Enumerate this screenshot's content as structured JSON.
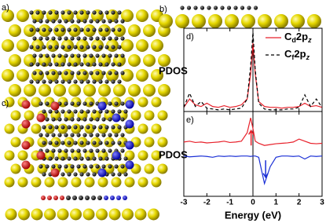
{
  "panel_labels": [
    "a)",
    "b)",
    "c)"
  ],
  "chart_data": [
    {
      "type": "line",
      "label": "d)",
      "ylabel": "PDOS",
      "xlim": [
        -3,
        3
      ],
      "ylim": [
        0,
        1
      ],
      "xticks": [
        -3,
        -2,
        -1,
        0,
        1,
        2,
        3
      ],
      "x": [
        -3,
        -2.75,
        -2.5,
        -2.25,
        -2,
        -1.75,
        -1.5,
        -1.25,
        -1,
        -0.75,
        -0.5,
        -0.25,
        -0.1,
        0,
        0.1,
        0.25,
        0.5,
        0.75,
        1,
        1.25,
        1.5,
        1.75,
        2,
        2.25,
        2.5,
        2.75,
        3
      ],
      "series": [
        {
          "name": "Cd2pz",
          "color": "#e8202a",
          "dash": false,
          "values": [
            0.05,
            0.15,
            0.08,
            0.06,
            0.1,
            0.06,
            0.05,
            0.07,
            0.05,
            0.06,
            0.08,
            0.15,
            0.45,
            0.82,
            0.45,
            0.12,
            0.06,
            0.05,
            0.05,
            0.04,
            0.05,
            0.05,
            0.06,
            0.1,
            0.06,
            0.07,
            0.05
          ]
        },
        {
          "name": "Cf2pz",
          "color": "#000000",
          "dash": true,
          "values": [
            0.05,
            0.22,
            0.06,
            0.12,
            0.04,
            0.03,
            0.02,
            0.03,
            0.02,
            0.03,
            0.04,
            0.15,
            0.55,
            0.95,
            0.5,
            0.1,
            0.03,
            0.02,
            0.02,
            0.02,
            0.03,
            0.03,
            0.05,
            0.2,
            0.06,
            0.15,
            0.05
          ]
        }
      ]
    },
    {
      "type": "line",
      "label": "e)",
      "ylabel": "PDOS",
      "xlabel": "Energy (eV)",
      "xlim": [
        -3,
        3
      ],
      "ylim": [
        -1,
        1
      ],
      "xticks": [
        -3,
        -2,
        -1,
        0,
        1,
        2,
        3
      ],
      "x": [
        -3,
        -2.75,
        -2.5,
        -2.25,
        -2,
        -1.75,
        -1.5,
        -1.25,
        -1,
        -0.75,
        -0.5,
        -0.25,
        -0.1,
        0,
        0.1,
        0.25,
        0.5,
        0.75,
        1,
        1.25,
        1.5,
        1.75,
        2,
        2.25,
        2.5,
        2.75,
        3
      ],
      "series": [
        {
          "color": "#e8202a",
          "dash": false,
          "values": [
            0.28,
            0.3,
            0.27,
            0.28,
            0.26,
            0.27,
            0.28,
            0.3,
            0.27,
            0.28,
            0.3,
            0.5,
            0.85,
            0.6,
            0.3,
            0.25,
            0.2,
            0.22,
            0.24,
            0.25,
            0.26,
            0.28,
            0.35,
            0.3,
            0.25,
            0.24,
            0.25
          ]
        },
        {
          "color": "#1a2fd6",
          "dash": false,
          "values": [
            -0.05,
            -0.07,
            -0.06,
            -0.05,
            -0.06,
            -0.08,
            -0.05,
            -0.06,
            -0.05,
            -0.06,
            -0.05,
            -0.05,
            -0.06,
            -0.05,
            -0.05,
            -0.08,
            -0.7,
            -0.3,
            -0.08,
            -0.05,
            -0.05,
            -0.06,
            -0.05,
            -0.12,
            -0.05,
            -0.06,
            -0.05
          ]
        }
      ]
    }
  ]
}
